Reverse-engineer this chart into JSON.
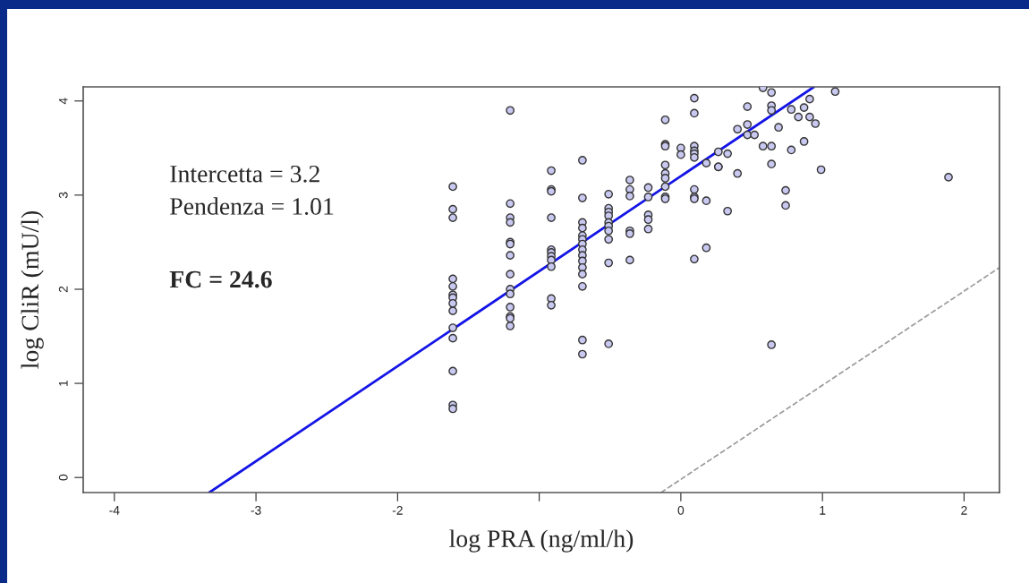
{
  "chart_data": {
    "type": "scatter",
    "xlabel": "log PRA (ng/ml/h)",
    "ylabel": "log CliR (mU/l)",
    "annotations": [
      "Intercetta = 3.2",
      "Pendenza = 1.01",
      "FC = 24.6"
    ],
    "xlim": [
      -4.22,
      2.25
    ],
    "ylim": [
      -0.16,
      4.15
    ],
    "xticks": [
      -4,
      -3,
      -2,
      {
        "value": -1,
        "label": null
      },
      0,
      1,
      2
    ],
    "yticks": [
      0,
      1,
      2,
      3,
      4
    ],
    "grid": false,
    "legend": false,
    "series": [
      {
        "color": "#c8c8f0",
        "marker": "circle",
        "x": [
          -1.61,
          -1.61,
          -1.61,
          -1.61,
          -1.61,
          -1.61,
          -1.61,
          -1.61,
          -1.61,
          -1.61,
          -1.61,
          -1.61,
          -1.61,
          -1.61,
          -1.205,
          -1.205,
          -1.205,
          -1.205,
          -1.205,
          -1.205,
          -1.205,
          -1.205,
          -1.205,
          -1.205,
          -1.205,
          -1.205,
          -1.205,
          -1.205,
          -0.915,
          -0.915,
          -0.915,
          -0.915,
          -0.915,
          -0.915,
          -0.915,
          -0.915,
          -0.915,
          -0.915,
          -0.915,
          -0.695,
          -0.695,
          -0.695,
          -0.695,
          -0.695,
          -0.695,
          -0.695,
          -0.695,
          -0.695,
          -0.695,
          -0.695,
          -0.695,
          -0.695,
          -0.695,
          -0.695,
          -0.51,
          -0.51,
          -0.51,
          -0.51,
          -0.51,
          -0.51,
          -0.51,
          -0.51,
          -0.51,
          -0.51,
          -0.36,
          -0.36,
          -0.36,
          -0.36,
          -0.36,
          -0.36,
          -0.23,
          -0.23,
          -0.23,
          -0.23,
          -0.23,
          -0.11,
          -0.11,
          -0.11,
          -0.11,
          -0.11,
          -0.11,
          -0.11,
          -0.11,
          -0.11,
          0.095,
          0.095,
          0.095,
          0.095,
          0.095,
          0.095,
          0.095,
          0.095,
          0.095,
          0.095,
          0,
          0,
          0.18,
          0.18,
          0.18,
          0.265,
          0.265,
          0.265,
          0.33,
          0.33,
          0.4,
          0.4,
          0.47,
          0.47,
          0.47,
          0.52,
          0.58,
          0.58,
          0.64,
          0.64,
          0.64,
          0.64,
          0.64,
          0.64,
          0.69,
          0.74,
          0.74,
          0.78,
          0.78,
          0.83,
          0.87,
          0.87,
          0.91,
          0.91,
          0.95,
          0.99,
          1.09,
          1.89
        ],
        "values": [
          3.09,
          2.85,
          2.76,
          2.11,
          2.03,
          1.94,
          1.91,
          1.85,
          1.77,
          1.59,
          1.48,
          1.13,
          0.77,
          0.73,
          3.9,
          2.91,
          2.76,
          2.71,
          2.5,
          2.48,
          2.36,
          2.16,
          2.0,
          1.95,
          1.81,
          1.71,
          1.69,
          1.61,
          3.26,
          3.06,
          3.04,
          2.76,
          2.42,
          2.39,
          2.35,
          2.31,
          2.24,
          1.9,
          1.83,
          3.37,
          2.97,
          2.71,
          2.65,
          2.57,
          2.53,
          2.48,
          2.42,
          2.36,
          2.3,
          2.23,
          2.16,
          2.03,
          1.46,
          1.31,
          3.01,
          2.86,
          2.82,
          2.78,
          2.71,
          2.67,
          2.62,
          2.53,
          2.28,
          1.42,
          3.16,
          3.06,
          2.99,
          2.62,
          2.59,
          2.31,
          3.08,
          2.98,
          2.79,
          2.74,
          2.64,
          3.8,
          3.54,
          3.52,
          3.32,
          3.23,
          3.18,
          3.09,
          2.98,
          2.96,
          4.03,
          3.87,
          3.52,
          3.47,
          3.44,
          3.4,
          3.06,
          2.98,
          2.96,
          2.32,
          3.5,
          3.43,
          3.34,
          2.94,
          2.44,
          3.46,
          3.3,
          3.3,
          3.44,
          2.83,
          3.7,
          3.23,
          3.94,
          3.75,
          3.64,
          3.64,
          4.14,
          3.52,
          4.09,
          3.95,
          3.9,
          3.52,
          3.33,
          1.41,
          3.72,
          3.05,
          2.89,
          3.91,
          3.48,
          3.83,
          3.93,
          3.57,
          4.02,
          3.83,
          3.76,
          3.27,
          4.1,
          3.19
        ]
      },
      {
        "type": "line",
        "color": "#1414e6",
        "line_style": "solid",
        "x": [
          -3.33,
          0.94
        ],
        "values": [
          -0.16,
          4.15
        ]
      },
      {
        "type": "line",
        "color": "#999999",
        "line_style": "dashed",
        "x": [
          -0.14,
          2.25
        ],
        "values": [
          -0.16,
          2.23
        ]
      }
    ]
  }
}
